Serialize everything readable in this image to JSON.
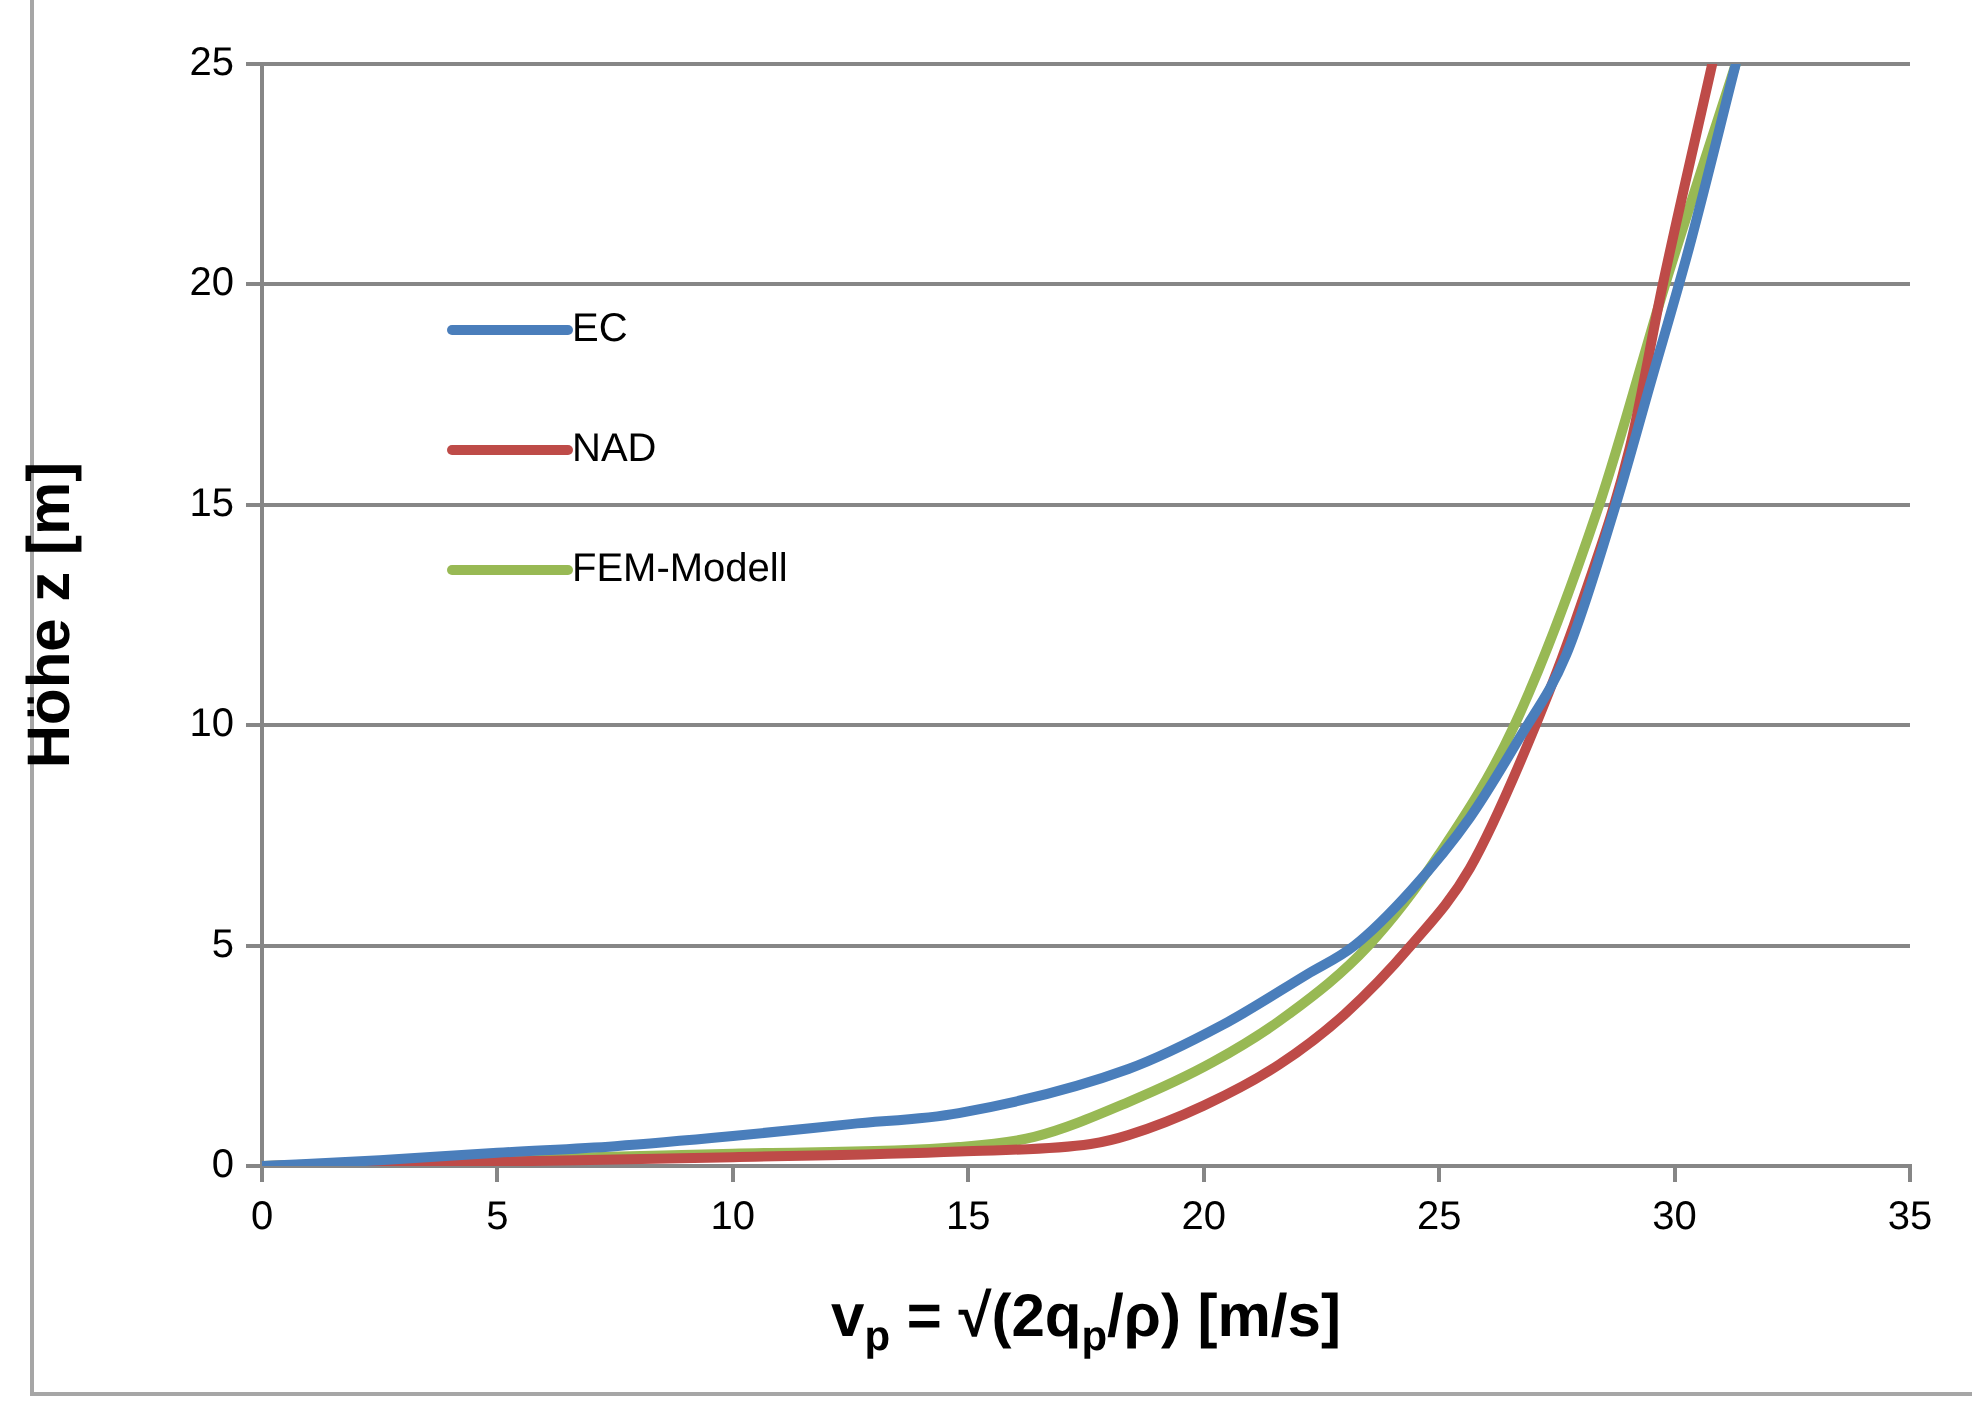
{
  "chart_data": {
    "type": "line",
    "xlabel": "v$_{p}$ = √(2q$_{p}$/ρ) [m/s]",
    "ylabel": "Höhe z [m]",
    "xlim": [
      0,
      35
    ],
    "xticks": [
      0,
      5,
      10,
      15,
      20,
      25,
      30,
      35
    ],
    "ylim": [
      0,
      25
    ],
    "yticks": [
      0,
      5,
      10,
      15,
      20,
      25
    ],
    "grid": "y",
    "legend": "top left",
    "marker": "none",
    "line_style": "solid",
    "series": [
      {
        "name": "EC",
        "color": "#4a7ebb",
        "x": [
          0,
          2.5,
          5,
          7.5,
          10,
          12.5,
          14.8,
          18.4,
          20.4,
          22.2,
          23.2,
          24.4,
          25.65,
          26.7,
          27.7,
          28.75,
          29.5,
          30.3,
          31.3
        ],
        "values": [
          0,
          0.13,
          0.3,
          0.45,
          0.68,
          0.95,
          1.2,
          2.2,
          3.2,
          4.35,
          5,
          6.25,
          7.9,
          9.7,
          11.6,
          15,
          17.8,
          20.8,
          25
        ]
      },
      {
        "name": "NAD",
        "color": "#be4b48",
        "x": [
          0,
          5,
          10,
          14.8,
          17.6,
          18.4,
          20,
          21.6,
          23,
          24.4,
          25.65,
          27.05,
          28.1,
          29.05,
          29.75,
          30.8
        ],
        "values": [
          0,
          0.1,
          0.2,
          0.33,
          0.5,
          0.7,
          1.37,
          2.3,
          3.45,
          5,
          6.75,
          10,
          13,
          16.3,
          20,
          25
        ]
      },
      {
        "name": "FEM-Modell",
        "color": "#98b954",
        "x": [
          0,
          5,
          10,
          14.8,
          16.4,
          18.4,
          20.2,
          21.8,
          23.5,
          25,
          26.6,
          28.4,
          29.8,
          31.3
        ],
        "values": [
          0,
          0.15,
          0.28,
          0.43,
          0.66,
          1.45,
          2.36,
          3.44,
          5,
          7.07,
          10,
          15,
          20,
          25
        ]
      }
    ]
  }
}
